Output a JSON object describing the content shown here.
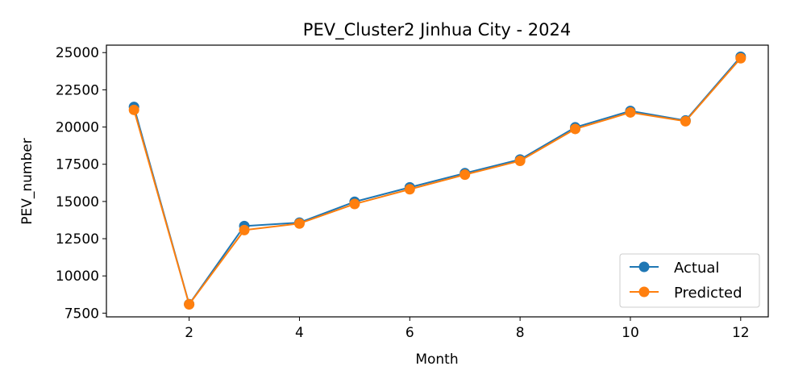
{
  "chart_data": {
    "type": "line",
    "title": "PEV_Cluster2 Jinhua City - 2024",
    "xlabel": "Month",
    "ylabel": "PEV_number",
    "xlim": [
      0.5,
      12.5
    ],
    "ylim": [
      7250,
      25500
    ],
    "xticks": [
      2,
      4,
      6,
      8,
      10,
      12
    ],
    "yticks": [
      7500,
      10000,
      12500,
      15000,
      17500,
      20000,
      22500,
      25000
    ],
    "x": [
      1,
      2,
      3,
      4,
      5,
      6,
      7,
      8,
      9,
      10,
      11,
      12
    ],
    "series": [
      {
        "name": "Actual",
        "color": "#1f77b4",
        "values": [
          21350,
          8100,
          13350,
          13580,
          14980,
          15950,
          16900,
          17820,
          19980,
          21080,
          20440,
          24720
        ]
      },
      {
        "name": "Predicted",
        "color": "#ff7f0e",
        "values": [
          21150,
          8090,
          13080,
          13520,
          14830,
          15820,
          16800,
          17730,
          19870,
          20980,
          20390,
          24620
        ]
      }
    ],
    "legend": {
      "position": "lower right"
    },
    "grid": false
  }
}
